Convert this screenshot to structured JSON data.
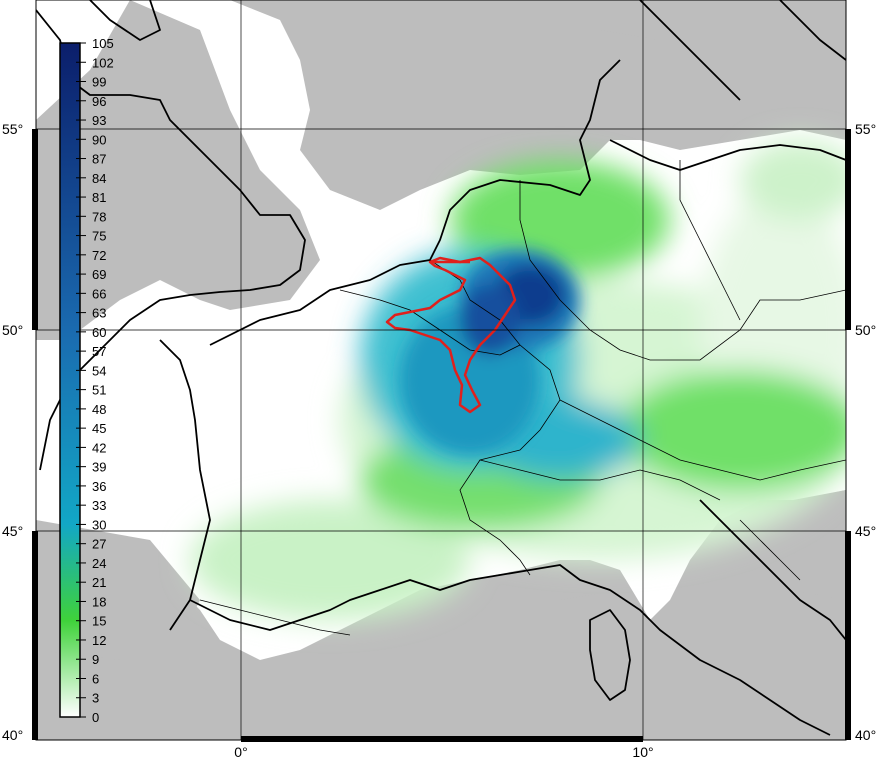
{
  "map": {
    "lat_labels": [
      "55°",
      "50°",
      "45°",
      "40°"
    ],
    "lon_labels": [
      "0°",
      "10°"
    ],
    "colors": {
      "land_outside": "#bdbdbd",
      "water": "#ffffff",
      "coastline": "#000000",
      "borders": "#000000",
      "track": "#e0201c"
    }
  },
  "colorbar": {
    "ticks": [
      "105",
      "102",
      "99",
      "96",
      "93",
      "90",
      "87",
      "84",
      "81",
      "78",
      "75",
      "72",
      "69",
      "66",
      "63",
      "60",
      "57",
      "54",
      "51",
      "48",
      "45",
      "42",
      "39",
      "36",
      "33",
      "30",
      "27",
      "24",
      "21",
      "18",
      "15",
      "12",
      "9",
      "6",
      "3",
      "0"
    ],
    "range": [
      0,
      105
    ],
    "stops": [
      {
        "v": 0,
        "c": "#ffffff"
      },
      {
        "v": 15,
        "c": "#3fd23a"
      },
      {
        "v": 30,
        "c": "#12a7c6"
      },
      {
        "v": 60,
        "c": "#1a6bb0"
      },
      {
        "v": 105,
        "c": "#0b1e6b"
      }
    ]
  }
}
